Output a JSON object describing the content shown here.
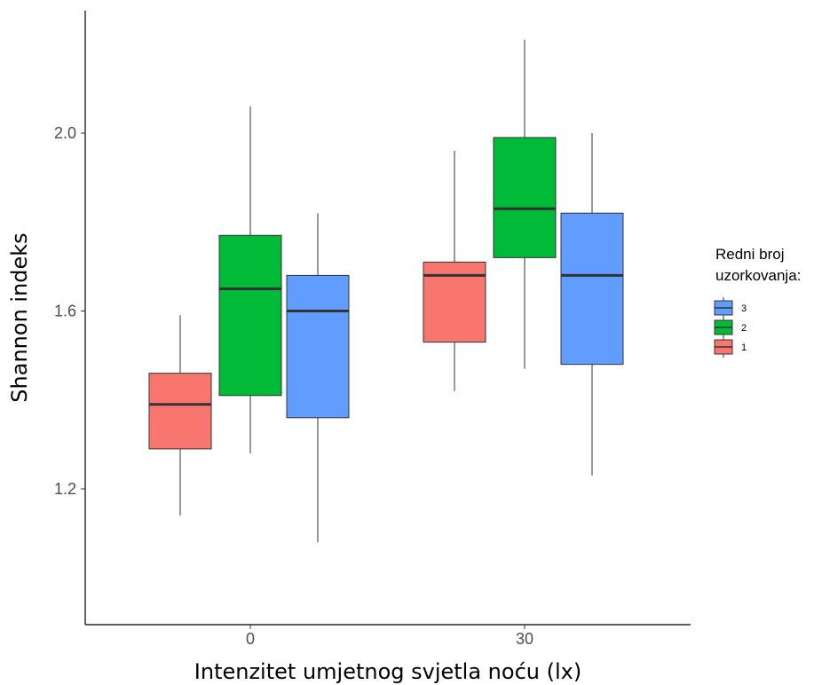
{
  "chart_data": {
    "type": "boxplot",
    "xlabel": "Intenzitet umjetnog svjetla noću (lx)",
    "ylabel": "Shannon indeks",
    "categories": [
      "0",
      "30"
    ],
    "ylim": [
      0.98,
      2.26
    ],
    "yticks": [
      1.2,
      1.6,
      2.0
    ],
    "ytick_labels": [
      "1.2",
      "1.6",
      "2.0"
    ],
    "grid": false,
    "legend": {
      "title_lines": [
        "Redni broj",
        "uzorkovanja:"
      ],
      "placement": "right",
      "entries": [
        "3",
        "2",
        "1"
      ]
    },
    "series": [
      {
        "name": "1",
        "color": "#F8766D",
        "boxes": [
          {
            "category": "0",
            "min": 1.14,
            "q1": 1.29,
            "median": 1.39,
            "q3": 1.46,
            "max": 1.59
          },
          {
            "category": "30",
            "min": 1.42,
            "q1": 1.53,
            "median": 1.68,
            "q3": 1.71,
            "max": 1.96
          }
        ]
      },
      {
        "name": "2",
        "color": "#00BA38",
        "boxes": [
          {
            "category": "0",
            "min": 1.28,
            "q1": 1.41,
            "median": 1.65,
            "q3": 1.77,
            "max": 2.06
          },
          {
            "category": "30",
            "min": 1.47,
            "q1": 1.72,
            "median": 1.83,
            "q3": 1.99,
            "max": 2.21
          }
        ]
      },
      {
        "name": "3",
        "color": "#619CFF",
        "boxes": [
          {
            "category": "0",
            "min": 1.08,
            "q1": 1.36,
            "median": 1.6,
            "q3": 1.68,
            "max": 1.82
          },
          {
            "category": "30",
            "min": 1.23,
            "q1": 1.48,
            "median": 1.68,
            "q3": 1.82,
            "max": 2.0
          }
        ]
      }
    ]
  }
}
